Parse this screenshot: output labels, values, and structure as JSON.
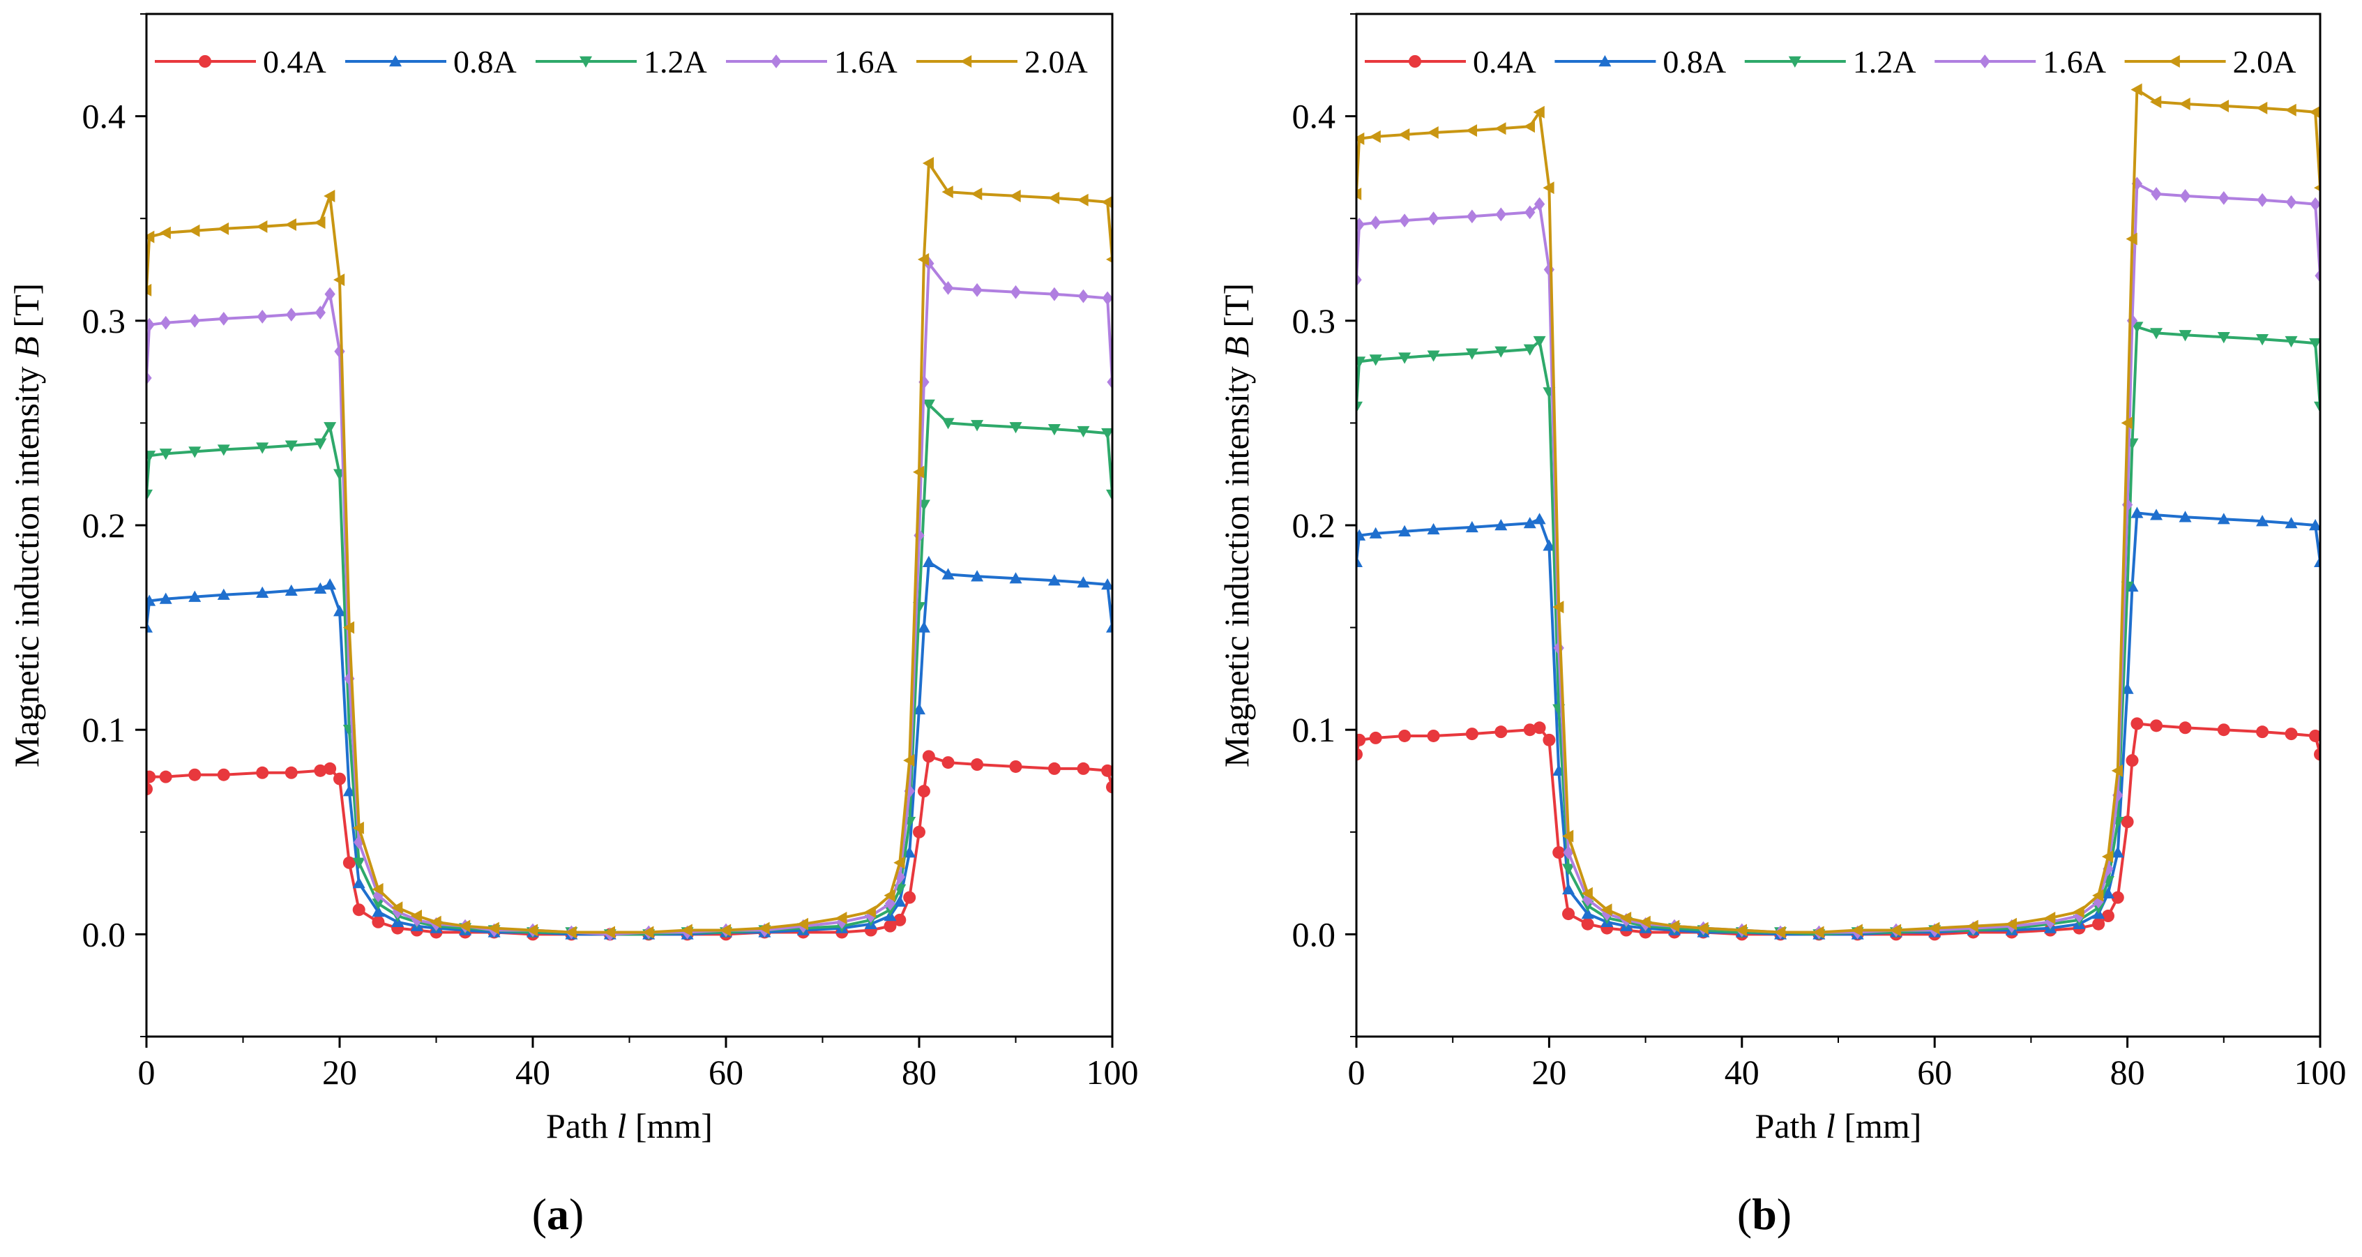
{
  "figure": {
    "panel_labels": [
      {
        "open": "(",
        "letter": "a",
        "close": ")"
      },
      {
        "open": "(",
        "letter": "b",
        "close": ")"
      }
    ]
  },
  "chart_data": [
    {
      "type": "line",
      "panel": "a",
      "xlabel": {
        "prefix": "Path ",
        "var": "l",
        "suffix": " [mm]"
      },
      "ylabel": {
        "prefix": "Magnetic induction intensity ",
        "var": "B",
        "suffix": " [T]"
      },
      "xlim": [
        0,
        100
      ],
      "ylim": [
        -0.05,
        0.45
      ],
      "xticks": [
        0,
        20,
        40,
        60,
        80,
        100
      ],
      "xtick_labels": [
        "0",
        "20",
        "40",
        "60",
        "80",
        "100"
      ],
      "yticks": [
        0.0,
        0.1,
        0.2,
        0.3,
        0.4
      ],
      "ytick_labels": [
        "0.0",
        "0.1",
        "0.2",
        "0.3",
        "0.4"
      ],
      "grid": false,
      "legend": "top",
      "series": [
        {
          "name": "0.4A",
          "color": "#e8383d",
          "marker": "circle",
          "x": [
            0,
            0.3,
            2,
            5,
            8,
            12,
            15,
            18,
            19,
            20,
            21,
            22,
            24,
            26,
            28,
            30,
            33,
            36,
            40,
            44,
            48,
            52,
            56,
            60,
            64,
            68,
            72,
            75,
            77,
            78,
            79,
            80,
            80.5,
            81,
            83,
            86,
            90,
            94,
            97,
            99.5,
            100
          ],
          "y": [
            0.071,
            0.077,
            0.077,
            0.078,
            0.078,
            0.079,
            0.079,
            0.08,
            0.081,
            0.076,
            0.035,
            0.012,
            0.006,
            0.003,
            0.002,
            0.001,
            0.001,
            0.001,
            0.0,
            0.0,
            0.0,
            0.0,
            0.0,
            0.0,
            0.001,
            0.001,
            0.001,
            0.002,
            0.004,
            0.007,
            0.018,
            0.05,
            0.07,
            0.087,
            0.084,
            0.083,
            0.082,
            0.081,
            0.081,
            0.08,
            0.072
          ]
        },
        {
          "name": "0.8A",
          "color": "#1f6fce",
          "marker": "triangle-up",
          "x": [
            0,
            0.3,
            2,
            5,
            8,
            12,
            15,
            18,
            19,
            20,
            21,
            22,
            24,
            26,
            28,
            30,
            33,
            36,
            40,
            44,
            48,
            52,
            56,
            60,
            64,
            68,
            72,
            75,
            77,
            78,
            79,
            80,
            80.5,
            81,
            83,
            86,
            90,
            94,
            97,
            99.5,
            100
          ],
          "y": [
            0.15,
            0.163,
            0.164,
            0.165,
            0.166,
            0.167,
            0.168,
            0.169,
            0.171,
            0.158,
            0.07,
            0.025,
            0.011,
            0.006,
            0.004,
            0.003,
            0.002,
            0.001,
            0.001,
            0.0,
            0.0,
            0.0,
            0.0,
            0.001,
            0.001,
            0.002,
            0.003,
            0.005,
            0.009,
            0.016,
            0.04,
            0.11,
            0.15,
            0.182,
            0.176,
            0.175,
            0.174,
            0.173,
            0.172,
            0.171,
            0.15
          ]
        },
        {
          "name": "1.2A",
          "color": "#2ea96a",
          "marker": "triangle-down",
          "x": [
            0,
            0.3,
            2,
            5,
            8,
            12,
            15,
            18,
            19,
            20,
            21,
            22,
            24,
            26,
            28,
            30,
            33,
            36,
            40,
            44,
            48,
            52,
            56,
            60,
            64,
            68,
            72,
            75,
            77,
            78,
            79,
            80,
            80.5,
            81,
            83,
            86,
            90,
            94,
            97,
            99.5,
            100
          ],
          "y": [
            0.215,
            0.234,
            0.235,
            0.236,
            0.237,
            0.238,
            0.239,
            0.24,
            0.248,
            0.225,
            0.1,
            0.035,
            0.015,
            0.009,
            0.006,
            0.004,
            0.003,
            0.002,
            0.001,
            0.001,
            0.0,
            0.0,
            0.001,
            0.001,
            0.002,
            0.003,
            0.004,
            0.007,
            0.012,
            0.022,
            0.055,
            0.16,
            0.21,
            0.259,
            0.25,
            0.249,
            0.248,
            0.247,
            0.246,
            0.245,
            0.215
          ]
        },
        {
          "name": "1.6A",
          "color": "#b07fe0",
          "marker": "diamond",
          "x": [
            0,
            0.3,
            2,
            5,
            8,
            12,
            15,
            18,
            19,
            20,
            21,
            22,
            24,
            26,
            28,
            30,
            33,
            36,
            40,
            44,
            48,
            52,
            56,
            60,
            64,
            68,
            72,
            75,
            77,
            78,
            79,
            80,
            80.5,
            81,
            83,
            86,
            90,
            94,
            97,
            99.5,
            100
          ],
          "y": [
            0.272,
            0.298,
            0.299,
            0.3,
            0.301,
            0.302,
            0.303,
            0.304,
            0.313,
            0.285,
            0.125,
            0.045,
            0.019,
            0.011,
            0.007,
            0.005,
            0.004,
            0.002,
            0.002,
            0.001,
            0.0,
            0.001,
            0.001,
            0.002,
            0.002,
            0.004,
            0.006,
            0.009,
            0.015,
            0.028,
            0.07,
            0.195,
            0.27,
            0.328,
            0.316,
            0.315,
            0.314,
            0.313,
            0.312,
            0.311,
            0.27
          ]
        },
        {
          "name": "2.0A",
          "color": "#c99612",
          "marker": "triangle-left",
          "x": [
            0,
            0.3,
            2,
            5,
            8,
            12,
            15,
            18,
            19,
            20,
            21,
            22,
            24,
            26,
            28,
            30,
            33,
            36,
            40,
            44,
            48,
            52,
            56,
            60,
            64,
            68,
            72,
            75,
            77,
            78,
            79,
            80,
            80.5,
            81,
            83,
            86,
            90,
            94,
            97,
            99.5,
            100
          ],
          "y": [
            0.315,
            0.341,
            0.343,
            0.344,
            0.345,
            0.346,
            0.347,
            0.348,
            0.361,
            0.32,
            0.15,
            0.052,
            0.022,
            0.013,
            0.009,
            0.006,
            0.004,
            0.003,
            0.002,
            0.001,
            0.001,
            0.001,
            0.002,
            0.002,
            0.003,
            0.005,
            0.008,
            0.011,
            0.019,
            0.035,
            0.085,
            0.226,
            0.33,
            0.377,
            0.363,
            0.362,
            0.361,
            0.36,
            0.359,
            0.358,
            0.33
          ]
        }
      ]
    },
    {
      "type": "line",
      "panel": "b",
      "xlabel": {
        "prefix": "Path ",
        "var": "l",
        "suffix": " [mm]"
      },
      "ylabel": {
        "prefix": "Magnetic induction intensity ",
        "var": "B",
        "suffix": " [T]"
      },
      "xlim": [
        0,
        100
      ],
      "ylim": [
        -0.05,
        0.45
      ],
      "xticks": [
        0,
        20,
        40,
        60,
        80,
        100
      ],
      "xtick_labels": [
        "0",
        "20",
        "40",
        "60",
        "80",
        "100"
      ],
      "yticks": [
        0.0,
        0.1,
        0.2,
        0.3,
        0.4
      ],
      "ytick_labels": [
        "0.0",
        "0.1",
        "0.2",
        "0.3",
        "0.4"
      ],
      "grid": false,
      "legend": "top",
      "series": [
        {
          "name": "0.4A",
          "color": "#e8383d",
          "marker": "circle",
          "x": [
            0,
            0.3,
            2,
            5,
            8,
            12,
            15,
            18,
            19,
            20,
            21,
            22,
            24,
            26,
            28,
            30,
            33,
            36,
            40,
            44,
            48,
            52,
            56,
            60,
            64,
            68,
            72,
            75,
            77,
            78,
            79,
            80,
            80.5,
            81,
            83,
            86,
            90,
            94,
            97,
            99.5,
            100
          ],
          "y": [
            0.088,
            0.095,
            0.096,
            0.097,
            0.097,
            0.098,
            0.099,
            0.1,
            0.101,
            0.095,
            0.04,
            0.01,
            0.005,
            0.003,
            0.002,
            0.001,
            0.001,
            0.001,
            0.0,
            0.0,
            0.0,
            0.0,
            0.0,
            0.0,
            0.001,
            0.001,
            0.002,
            0.003,
            0.005,
            0.009,
            0.018,
            0.055,
            0.085,
            0.103,
            0.102,
            0.101,
            0.1,
            0.099,
            0.098,
            0.097,
            0.088
          ]
        },
        {
          "name": "0.8A",
          "color": "#1f6fce",
          "marker": "triangle-up",
          "x": [
            0,
            0.3,
            2,
            5,
            8,
            12,
            15,
            18,
            19,
            20,
            21,
            22,
            24,
            26,
            28,
            30,
            33,
            36,
            40,
            44,
            48,
            52,
            56,
            60,
            64,
            68,
            72,
            75,
            77,
            78,
            79,
            80,
            80.5,
            81,
            83,
            86,
            90,
            94,
            97,
            99.5,
            100
          ],
          "y": [
            0.182,
            0.195,
            0.196,
            0.197,
            0.198,
            0.199,
            0.2,
            0.201,
            0.203,
            0.19,
            0.08,
            0.022,
            0.01,
            0.006,
            0.004,
            0.003,
            0.002,
            0.001,
            0.001,
            0.0,
            0.0,
            0.0,
            0.001,
            0.001,
            0.002,
            0.002,
            0.003,
            0.005,
            0.01,
            0.02,
            0.04,
            0.12,
            0.17,
            0.206,
            0.205,
            0.204,
            0.203,
            0.202,
            0.201,
            0.2,
            0.182
          ]
        },
        {
          "name": "1.2A",
          "color": "#2ea96a",
          "marker": "triangle-down",
          "x": [
            0,
            0.3,
            2,
            5,
            8,
            12,
            15,
            18,
            19,
            20,
            21,
            22,
            24,
            26,
            28,
            30,
            33,
            36,
            40,
            44,
            48,
            52,
            56,
            60,
            64,
            68,
            72,
            75,
            77,
            78,
            79,
            80,
            80.5,
            81,
            83,
            86,
            90,
            94,
            97,
            99.5,
            100
          ],
          "y": [
            0.258,
            0.28,
            0.281,
            0.282,
            0.283,
            0.284,
            0.285,
            0.286,
            0.29,
            0.265,
            0.11,
            0.032,
            0.014,
            0.008,
            0.006,
            0.004,
            0.003,
            0.002,
            0.001,
            0.001,
            0.0,
            0.001,
            0.001,
            0.002,
            0.002,
            0.003,
            0.005,
            0.007,
            0.013,
            0.026,
            0.055,
            0.17,
            0.24,
            0.297,
            0.294,
            0.293,
            0.292,
            0.291,
            0.29,
            0.289,
            0.258
          ]
        },
        {
          "name": "1.6A",
          "color": "#b07fe0",
          "marker": "diamond",
          "x": [
            0,
            0.3,
            2,
            5,
            8,
            12,
            15,
            18,
            19,
            20,
            21,
            22,
            24,
            26,
            28,
            30,
            33,
            36,
            40,
            44,
            48,
            52,
            56,
            60,
            64,
            68,
            72,
            75,
            77,
            78,
            79,
            80,
            80.5,
            81,
            83,
            86,
            90,
            94,
            97,
            99.5,
            100
          ],
          "y": [
            0.32,
            0.347,
            0.348,
            0.349,
            0.35,
            0.351,
            0.352,
            0.353,
            0.357,
            0.325,
            0.14,
            0.04,
            0.017,
            0.01,
            0.007,
            0.005,
            0.004,
            0.003,
            0.002,
            0.001,
            0.001,
            0.001,
            0.002,
            0.002,
            0.003,
            0.004,
            0.006,
            0.009,
            0.016,
            0.032,
            0.068,
            0.21,
            0.3,
            0.367,
            0.362,
            0.361,
            0.36,
            0.359,
            0.358,
            0.357,
            0.322
          ]
        },
        {
          "name": "2.0A",
          "color": "#c99612",
          "marker": "triangle-left",
          "x": [
            0,
            0.3,
            2,
            5,
            8,
            12,
            15,
            18,
            19,
            20,
            21,
            22,
            24,
            26,
            28,
            30,
            33,
            36,
            40,
            44,
            48,
            52,
            56,
            60,
            64,
            68,
            72,
            75,
            77,
            78,
            79,
            80,
            80.5,
            81,
            83,
            86,
            90,
            94,
            97,
            99.5,
            100
          ],
          "y": [
            0.362,
            0.389,
            0.39,
            0.391,
            0.392,
            0.393,
            0.394,
            0.395,
            0.402,
            0.365,
            0.16,
            0.048,
            0.02,
            0.012,
            0.008,
            0.006,
            0.004,
            0.003,
            0.002,
            0.001,
            0.001,
            0.002,
            0.002,
            0.003,
            0.004,
            0.005,
            0.008,
            0.011,
            0.019,
            0.038,
            0.08,
            0.25,
            0.34,
            0.413,
            0.407,
            0.406,
            0.405,
            0.404,
            0.403,
            0.402,
            0.365
          ]
        }
      ]
    }
  ]
}
